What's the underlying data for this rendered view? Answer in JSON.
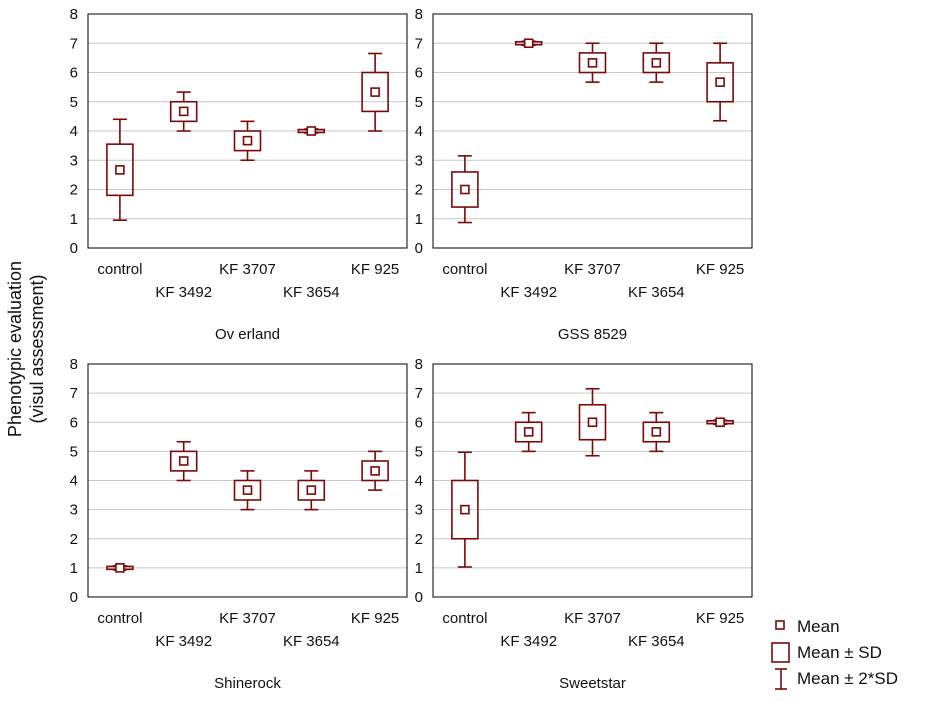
{
  "ylabel_line1": "Phenotypic evaluation",
  "ylabel_line2": "(visul assessment)",
  "colors": {
    "mark": "#7a0a0a",
    "grid": "#c8c8c8",
    "frame": "#000000"
  },
  "legend": {
    "mean": "Mean",
    "sd": "Mean ± SD",
    "sd2": "Mean ± 2*SD"
  },
  "chart_data": [
    {
      "type": "box",
      "title": "Ov erland",
      "categories": [
        "control",
        "KF 3492",
        "KF 3707",
        "KF 3654",
        "KF 925"
      ],
      "mean": [
        2.67,
        4.67,
        3.67,
        4.0,
        5.33
      ],
      "sd_low": [
        1.8,
        4.33,
        3.33,
        3.95,
        4.67
      ],
      "sd_high": [
        3.55,
        5.0,
        4.0,
        4.05,
        6.0
      ],
      "sd2_low": [
        0.95,
        4.0,
        3.0,
        3.93,
        4.0
      ],
      "sd2_high": [
        4.4,
        5.33,
        4.33,
        4.07,
        6.65
      ],
      "ylim": [
        0,
        8
      ],
      "yticks": [
        "0",
        "1",
        "2",
        "3",
        "4",
        "5",
        "6",
        "7",
        "8"
      ]
    },
    {
      "type": "box",
      "title": "GSS 8529",
      "categories": [
        "control",
        "KF 3492",
        "KF 3707",
        "KF 3654",
        "KF 925"
      ],
      "mean": [
        2.0,
        7.0,
        6.33,
        6.33,
        5.67
      ],
      "sd_low": [
        1.4,
        6.95,
        6.0,
        6.0,
        5.0
      ],
      "sd_high": [
        2.6,
        7.05,
        6.67,
        6.67,
        6.33
      ],
      "sd2_low": [
        0.87,
        6.93,
        5.67,
        5.67,
        4.35
      ],
      "sd2_high": [
        3.15,
        7.07,
        7.0,
        7.0,
        7.0
      ],
      "ylim": [
        0,
        8
      ],
      "yticks": [
        "0",
        "1",
        "2",
        "3",
        "4",
        "5",
        "6",
        "7",
        "8"
      ]
    },
    {
      "type": "box",
      "title": "Shinerock",
      "categories": [
        "control",
        "KF 3492",
        "KF 3707",
        "KF 3654",
        "KF 925"
      ],
      "mean": [
        1.0,
        4.67,
        3.67,
        3.67,
        4.33
      ],
      "sd_low": [
        0.95,
        4.33,
        3.33,
        3.33,
        4.0
      ],
      "sd_high": [
        1.05,
        5.0,
        4.0,
        4.0,
        4.67
      ],
      "sd2_low": [
        0.93,
        4.0,
        3.0,
        3.0,
        3.67
      ],
      "sd2_high": [
        1.07,
        5.33,
        4.33,
        4.33,
        5.0
      ],
      "ylim": [
        0,
        8
      ],
      "yticks": [
        "0",
        "1",
        "2",
        "3",
        "4",
        "5",
        "6",
        "7",
        "8"
      ]
    },
    {
      "type": "box",
      "title": "Sweetstar",
      "categories": [
        "control",
        "KF 3492",
        "KF 3707",
        "KF 3654",
        "KF 925"
      ],
      "mean": [
        3.0,
        5.67,
        6.0,
        5.67,
        6.0
      ],
      "sd_low": [
        2.0,
        5.33,
        5.4,
        5.33,
        5.95
      ],
      "sd_high": [
        4.0,
        6.0,
        6.6,
        6.0,
        6.05
      ],
      "sd2_low": [
        1.03,
        5.0,
        4.85,
        5.0,
        5.93
      ],
      "sd2_high": [
        4.97,
        6.33,
        7.15,
        6.33,
        6.07
      ],
      "ylim": [
        0,
        8
      ],
      "yticks": [
        "0",
        "1",
        "2",
        "3",
        "4",
        "5",
        "6",
        "7",
        "8"
      ]
    }
  ]
}
